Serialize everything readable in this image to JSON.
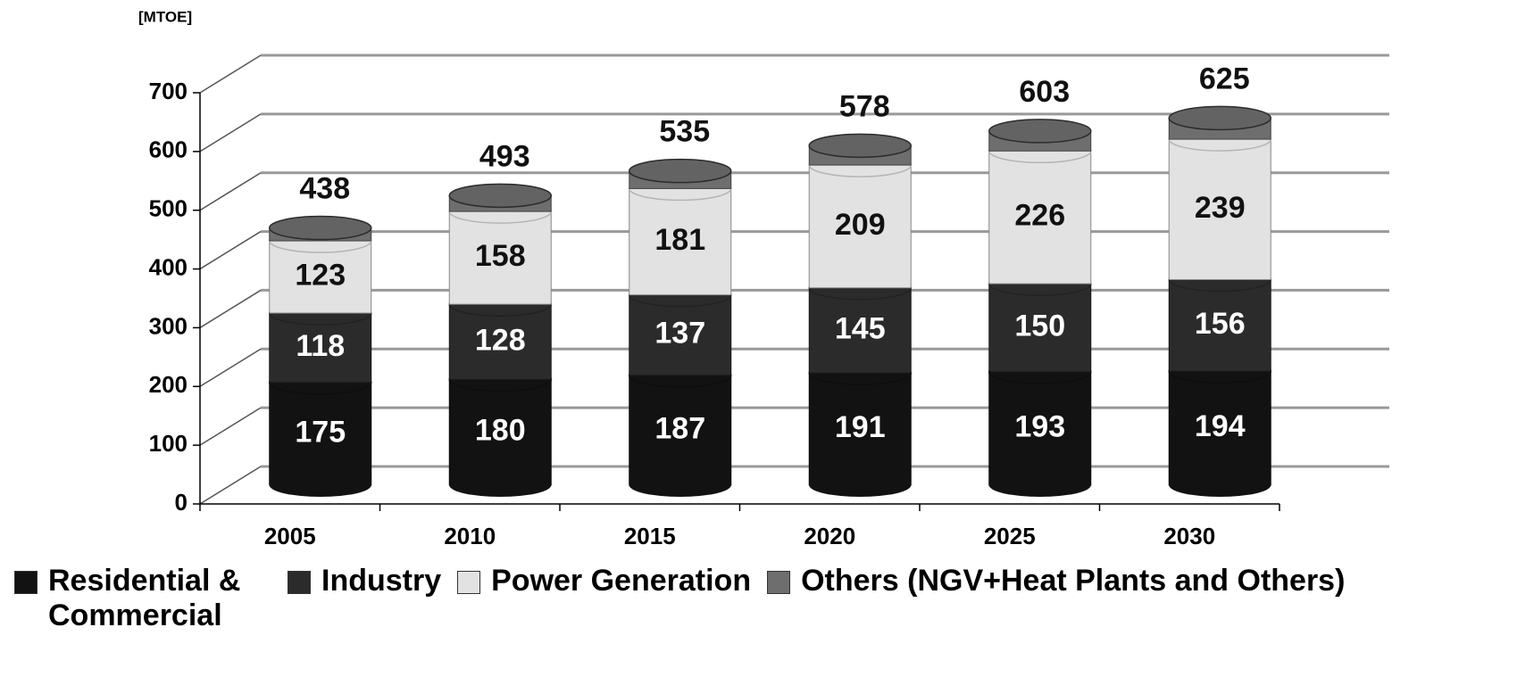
{
  "chart_data": {
    "type": "bar3d_stacked",
    "y_label": "[MTOE]",
    "categories": [
      "2005",
      "2010",
      "2015",
      "2020",
      "2025",
      "2030"
    ],
    "series": [
      {
        "name": "Residential & Commercial",
        "color": "#121212",
        "values": [
          175,
          180,
          187,
          191,
          193,
          194
        ]
      },
      {
        "name": "Industry",
        "color": "#2b2b2b",
        "values": [
          118,
          128,
          137,
          145,
          150,
          156
        ]
      },
      {
        "name": "Power Generation",
        "color": "#e2e2e2",
        "values": [
          123,
          158,
          181,
          209,
          226,
          239
        ]
      },
      {
        "name": "Others (NGV+Heat Plants and Others)",
        "color": "#6e6e6e",
        "values": [
          22,
          27,
          30,
          33,
          34,
          36
        ]
      }
    ],
    "totals": [
      438,
      493,
      535,
      578,
      603,
      625
    ],
    "ylim": [
      0,
      700
    ],
    "yticks": [
      0,
      100,
      200,
      300,
      400,
      500,
      600,
      700
    ],
    "grid": true
  }
}
